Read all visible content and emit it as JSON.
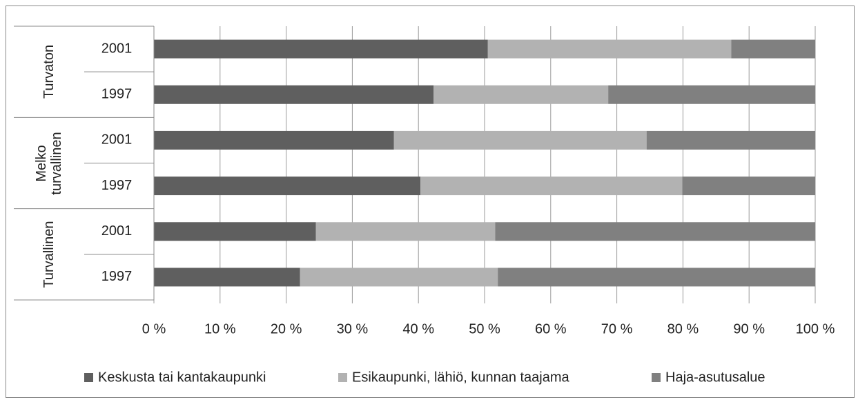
{
  "chart_data": {
    "type": "stacked_bar_horizontal",
    "groups": [
      {
        "name": "Turvaton",
        "categories": [
          "2001",
          "1997"
        ]
      },
      {
        "name": "Melko turvallinen",
        "categories": [
          "2001",
          "1997"
        ]
      },
      {
        "name": "Turvallinen",
        "categories": [
          "2001",
          "1997"
        ]
      }
    ],
    "series": [
      {
        "name": "Keskusta tai kantakaupunki",
        "color": "#5f5f5f",
        "values": [
          50.5,
          42.3,
          36.3,
          40.3,
          24.5,
          22.1
        ]
      },
      {
        "name": "Esikaupunki, lähiö, kunnan taajama",
        "color": "#b2b2b2",
        "values": [
          36.8,
          26.4,
          38.2,
          39.6,
          27.1,
          29.9
        ]
      },
      {
        "name": "Haja-asutusalue",
        "color": "#808080",
        "values": [
          12.7,
          31.3,
          25.5,
          20.1,
          48.4,
          48.0
        ]
      }
    ],
    "xlim": [
      0,
      100
    ],
    "xticks": [
      {
        "value": 0,
        "label": "0 %"
      },
      {
        "value": 10,
        "label": "10 %"
      },
      {
        "value": 20,
        "label": "20 %"
      },
      {
        "value": 30,
        "label": "30 %"
      },
      {
        "value": 40,
        "label": "40 %"
      },
      {
        "value": 50,
        "label": "50 %"
      },
      {
        "value": 60,
        "label": "60 %"
      },
      {
        "value": 70,
        "label": "70 %"
      },
      {
        "value": 80,
        "label": "80 %"
      },
      {
        "value": 90,
        "label": "90 %"
      },
      {
        "value": 100,
        "label": "100 %"
      }
    ],
    "grid": true,
    "legend": "bottom"
  }
}
